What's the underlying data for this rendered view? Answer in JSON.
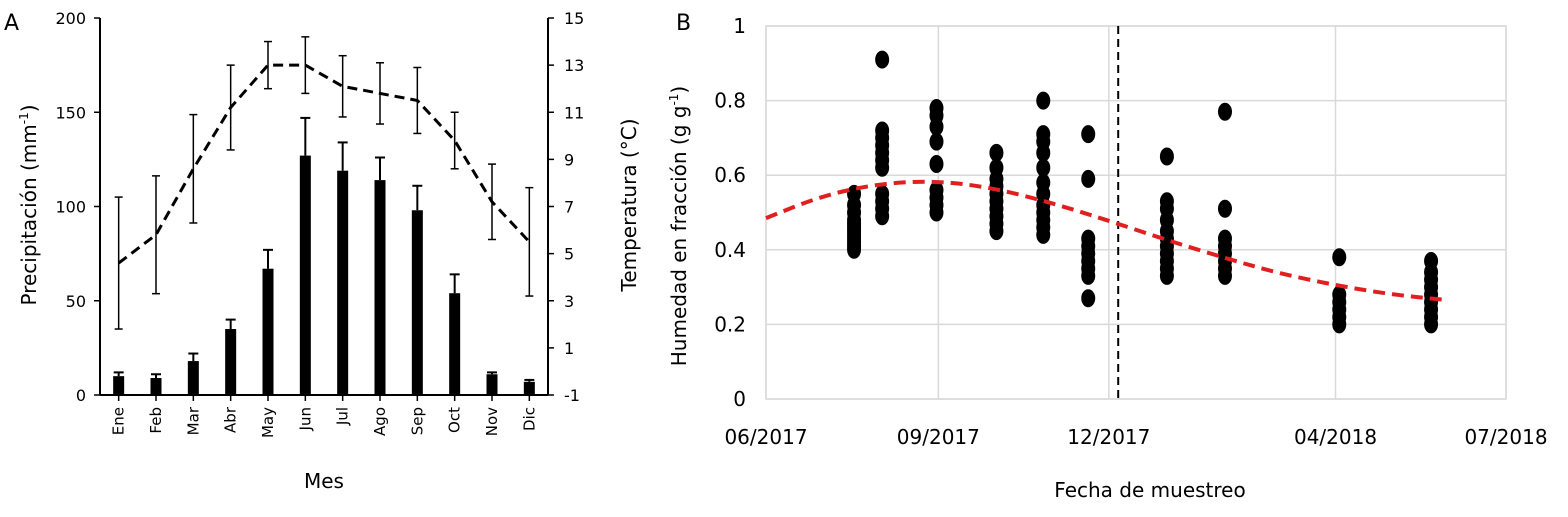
{
  "chart_data": [
    {
      "panel": "A",
      "type": "bar",
      "xlabel": "Mes",
      "ylabel": "Precipitación (mm",
      "ylabel_sup": "-1",
      "ylabel_close": ")",
      "y2label": "Temperatura (°C)",
      "categories": [
        "Ene",
        "Feb",
        "Mar",
        "Abr",
        "May",
        "Jun",
        "Jul",
        "Ago",
        "Sep",
        "Oct",
        "Nov",
        "Dic"
      ],
      "ylim": [
        0,
        200
      ],
      "y_ticks": [
        "0",
        "50",
        "100",
        "150",
        "200"
      ],
      "y2lim": [
        -1,
        15
      ],
      "y2_ticks": [
        "-1",
        "1",
        "3",
        "5",
        "7",
        "9",
        "11",
        "13",
        "15"
      ],
      "series": [
        {
          "kind": "bar",
          "axis": "left",
          "color": "#000000",
          "values": [
            10,
            9,
            18,
            35,
            67,
            127,
            119,
            114,
            98,
            54,
            11,
            7
          ],
          "err": [
            2,
            2,
            4,
            5,
            10,
            20,
            15,
            12,
            13,
            10,
            1,
            1
          ]
        },
        {
          "kind": "line",
          "style": "dashed",
          "axis": "right",
          "color": "#000000",
          "values": [
            4.6,
            5.8,
            8.6,
            11.2,
            13.0,
            13.0,
            12.1,
            11.8,
            11.5,
            9.8,
            7.2,
            5.5
          ],
          "err": [
            2.8,
            2.5,
            2.3,
            1.8,
            1.0,
            1.2,
            1.3,
            1.3,
            1.4,
            1.2,
            1.6,
            2.3
          ]
        }
      ]
    },
    {
      "panel": "B",
      "type": "scatter",
      "xlabel": "Fecha de muestreo",
      "ylabel": "Humedad en fracción (g g",
      "ylabel_sup": "-1",
      "ylabel_close": ")",
      "x_ticks": [
        "06/2017",
        "09/2017",
        "12/2017",
        "04/2018",
        "07/2018"
      ],
      "x_tick_days": [
        0,
        92,
        183,
        304,
        395
      ],
      "ylim": [
        0,
        1
      ],
      "y_ticks": [
        "0",
        "0.2",
        "0.4",
        "0.6",
        "0.8",
        "1"
      ],
      "grid": true,
      "vline_day": 188,
      "point_color": "#000000",
      "trend_color": "#e02020",
      "groups": [
        {
          "date": "2017-07-18",
          "y": [
            0.4,
            0.41,
            0.42,
            0.43,
            0.44,
            0.45,
            0.46,
            0.47,
            0.48,
            0.5,
            0.52,
            0.55
          ]
        },
        {
          "date": "2017-08-02",
          "y": [
            0.49,
            0.51,
            0.53,
            0.55,
            0.62,
            0.64,
            0.66,
            0.68,
            0.7,
            0.72,
            0.91
          ]
        },
        {
          "date": "2017-08-31",
          "y": [
            0.5,
            0.52,
            0.54,
            0.56,
            0.63,
            0.69,
            0.73,
            0.76,
            0.78
          ]
        },
        {
          "date": "2017-10-02",
          "y": [
            0.45,
            0.47,
            0.49,
            0.51,
            0.53,
            0.55,
            0.57,
            0.59,
            0.62,
            0.66
          ]
        },
        {
          "date": "2017-10-27",
          "y": [
            0.44,
            0.46,
            0.48,
            0.5,
            0.52,
            0.55,
            0.58,
            0.62,
            0.66,
            0.69,
            0.71,
            0.8
          ]
        },
        {
          "date": "2017-11-20",
          "y": [
            0.27,
            0.33,
            0.35,
            0.37,
            0.39,
            0.41,
            0.43,
            0.59,
            0.71
          ]
        },
        {
          "date": "2018-01-01",
          "y": [
            0.33,
            0.35,
            0.37,
            0.39,
            0.41,
            0.43,
            0.45,
            0.48,
            0.51,
            0.53,
            0.65
          ]
        },
        {
          "date": "2018-02-01",
          "y": [
            0.33,
            0.35,
            0.37,
            0.39,
            0.41,
            0.43,
            0.51,
            0.77
          ]
        },
        {
          "date": "2018-04-03",
          "y": [
            0.2,
            0.22,
            0.24,
            0.26,
            0.28,
            0.38
          ]
        },
        {
          "date": "2018-05-22",
          "y": [
            0.2,
            0.22,
            0.24,
            0.26,
            0.28,
            0.3,
            0.32,
            0.34,
            0.37
          ]
        }
      ],
      "trend": {
        "style": "dashed",
        "points": [
          {
            "date": "2017-06-01",
            "y": 0.485
          },
          {
            "date": "2017-07-01",
            "y": 0.545
          },
          {
            "date": "2017-08-01",
            "y": 0.578
          },
          {
            "date": "2017-09-01",
            "y": 0.585
          },
          {
            "date": "2017-10-01",
            "y": 0.565
          },
          {
            "date": "2017-11-01",
            "y": 0.525
          },
          {
            "date": "2017-12-01",
            "y": 0.478
          },
          {
            "date": "2018-01-01",
            "y": 0.426
          },
          {
            "date": "2018-02-01",
            "y": 0.378
          },
          {
            "date": "2018-03-01",
            "y": 0.338
          },
          {
            "date": "2018-04-01",
            "y": 0.305
          },
          {
            "date": "2018-05-01",
            "y": 0.28
          },
          {
            "date": "2018-05-31",
            "y": 0.265
          }
        ]
      }
    }
  ]
}
